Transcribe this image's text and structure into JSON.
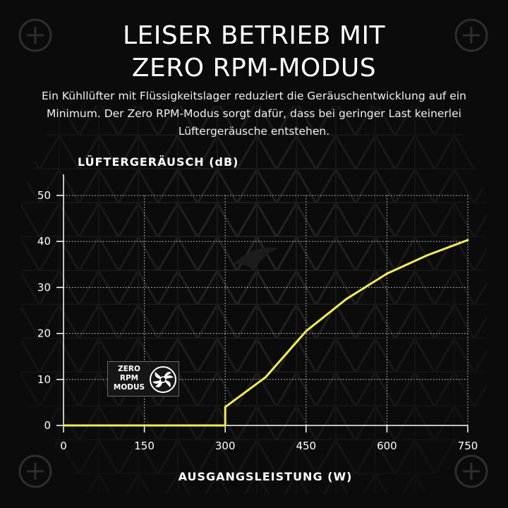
{
  "header": {
    "title_line1": "LEISER BETRIEB MIT",
    "title_line2": "ZERO RPM-MODUS",
    "description": "Ein Kühllüfter mit Flüssigkeitslager reduziert die Geräuschentwicklung auf ein Minimum. Der Zero RPM-Modus sorgt dafür, dass bei geringer Last keinerlei Lüftergeräusche entstehen."
  },
  "badge": {
    "line1": "ZERO",
    "line2": "RPM",
    "line3": "MODUS",
    "icon": "fan-icon"
  },
  "colors": {
    "background": "#0b0b0b",
    "line": "#f2ea5c",
    "grid": "#d8d8d8",
    "text": "#ffffff"
  },
  "chart_data": {
    "type": "line",
    "title": "",
    "ylabel": "LÜFTERGERÄUSCH (dB)",
    "xlabel": "AUSGANGSLEISTUNG (W)",
    "xlim": [
      0,
      750
    ],
    "ylim": [
      0,
      50
    ],
    "x_ticks": [
      0,
      150,
      300,
      450,
      600,
      750
    ],
    "y_ticks": [
      0,
      10,
      20,
      30,
      40,
      50
    ],
    "grid": true,
    "legend": "none",
    "series": [
      {
        "x": [
          0,
          300,
          300,
          375,
          450,
          525,
          600,
          675,
          750
        ],
        "y": [
          0,
          0,
          4,
          10.5,
          20.5,
          27.5,
          33,
          37,
          40.3
        ]
      }
    ]
  }
}
